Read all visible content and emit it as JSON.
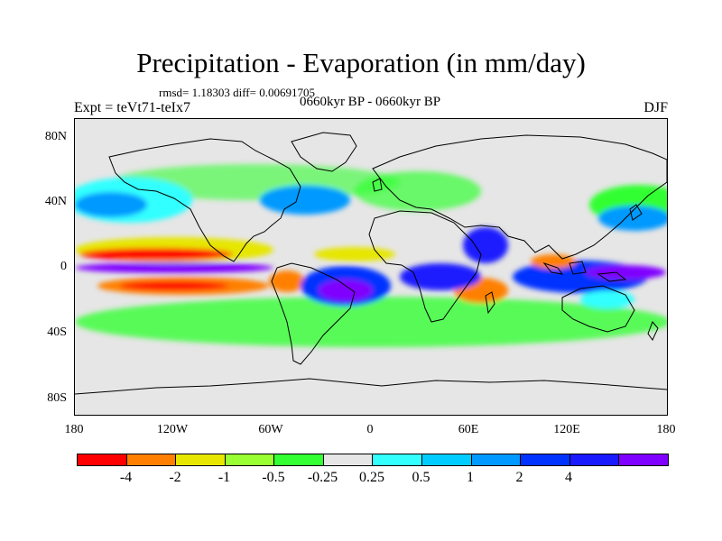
{
  "title": "Precipitation - Evaporation (in mm/day)",
  "stats": "rmsd= 1.18303 diff= 0.00691705",
  "experiment": "Expt = teVt71-teIx7",
  "period": "0660kyr BP - 0660kyr BP",
  "season": "DJF",
  "map": {
    "projection": "cylindrical-equidistant",
    "lon_range": [
      -180,
      180
    ],
    "lat_range": [
      -90,
      90
    ],
    "background": "#e6e6e6",
    "lat_ticks": [
      "80N",
      "40N",
      "0",
      "40S",
      "80S"
    ],
    "lon_ticks": [
      "180",
      "120W",
      "60W",
      "0",
      "60E",
      "120E",
      "180"
    ]
  },
  "colorbar": {
    "colors": [
      "#ff0000",
      "#ff8000",
      "#e6e600",
      "#99ff33",
      "#33ff33",
      "#e6e6e6",
      "#33ffff",
      "#00ccff",
      "#0099ff",
      "#0033ff",
      "#1a1aff",
      "#8000ff"
    ],
    "labels": [
      "-4",
      "-2",
      "-1",
      "-0.5",
      "-0.25",
      "0.25",
      "0.5",
      "1",
      "2",
      "4"
    ]
  }
}
